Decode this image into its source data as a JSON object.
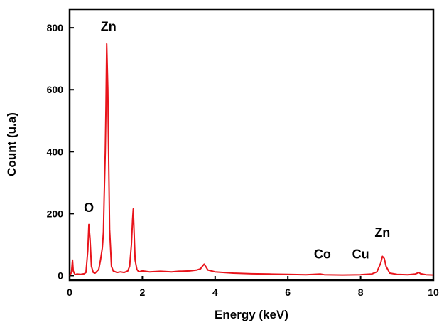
{
  "chart_data": {
    "type": "line",
    "title": "",
    "xlabel": "Energy (keV)",
    "ylabel": "Count (u.a)",
    "xlim": [
      0,
      10
    ],
    "ylim": [
      -15,
      860
    ],
    "x_ticks": [
      "0",
      "2",
      "4",
      "6",
      "8",
      "10"
    ],
    "y_ticks": [
      "0",
      "200",
      "400",
      "600",
      "800"
    ],
    "grid": false,
    "legend": "none",
    "line_color": "#e8141b",
    "annotations": [
      {
        "text": "Zn",
        "x": 1.07,
        "y": 790
      },
      {
        "text": "O",
        "x": 0.53,
        "y": 205
      },
      {
        "text": "Co",
        "x": 6.95,
        "y": 55
      },
      {
        "text": "Cu",
        "x": 8.0,
        "y": 55
      },
      {
        "text": "Zn",
        "x": 8.6,
        "y": 125
      }
    ],
    "series": [
      {
        "points": [
          [
            0.0,
            0
          ],
          [
            0.05,
            10
          ],
          [
            0.08,
            50
          ],
          [
            0.1,
            15
          ],
          [
            0.15,
            3
          ],
          [
            0.2,
            5
          ],
          [
            0.3,
            4
          ],
          [
            0.4,
            6
          ],
          [
            0.45,
            10
          ],
          [
            0.5,
            80
          ],
          [
            0.53,
            165
          ],
          [
            0.56,
            120
          ],
          [
            0.6,
            30
          ],
          [
            0.65,
            10
          ],
          [
            0.7,
            8
          ],
          [
            0.8,
            20
          ],
          [
            0.85,
            50
          ],
          [
            0.9,
            90
          ],
          [
            0.93,
            140
          ],
          [
            0.95,
            250
          ],
          [
            0.98,
            400
          ],
          [
            1.0,
            550
          ],
          [
            1.02,
            748
          ],
          [
            1.05,
            600
          ],
          [
            1.07,
            410
          ],
          [
            1.1,
            150
          ],
          [
            1.15,
            30
          ],
          [
            1.2,
            15
          ],
          [
            1.3,
            10
          ],
          [
            1.4,
            12
          ],
          [
            1.5,
            10
          ],
          [
            1.6,
            15
          ],
          [
            1.65,
            30
          ],
          [
            1.7,
            100
          ],
          [
            1.73,
            180
          ],
          [
            1.75,
            215
          ],
          [
            1.77,
            150
          ],
          [
            1.8,
            50
          ],
          [
            1.85,
            20
          ],
          [
            1.9,
            12
          ],
          [
            2.0,
            15
          ],
          [
            2.2,
            12
          ],
          [
            2.5,
            14
          ],
          [
            2.8,
            12
          ],
          [
            3.0,
            14
          ],
          [
            3.3,
            15
          ],
          [
            3.5,
            18
          ],
          [
            3.6,
            22
          ],
          [
            3.65,
            30
          ],
          [
            3.7,
            37
          ],
          [
            3.75,
            28
          ],
          [
            3.8,
            18
          ],
          [
            4.0,
            12
          ],
          [
            4.5,
            8
          ],
          [
            5.0,
            6
          ],
          [
            5.5,
            5
          ],
          [
            6.0,
            4
          ],
          [
            6.5,
            3
          ],
          [
            6.9,
            5
          ],
          [
            7.0,
            3
          ],
          [
            7.5,
            2
          ],
          [
            8.0,
            3
          ],
          [
            8.3,
            5
          ],
          [
            8.45,
            12
          ],
          [
            8.55,
            40
          ],
          [
            8.6,
            62
          ],
          [
            8.65,
            55
          ],
          [
            8.7,
            30
          ],
          [
            8.8,
            8
          ],
          [
            9.0,
            4
          ],
          [
            9.3,
            3
          ],
          [
            9.5,
            5
          ],
          [
            9.6,
            10
          ],
          [
            9.65,
            6
          ],
          [
            9.8,
            3
          ],
          [
            10.0,
            2
          ]
        ]
      }
    ]
  }
}
